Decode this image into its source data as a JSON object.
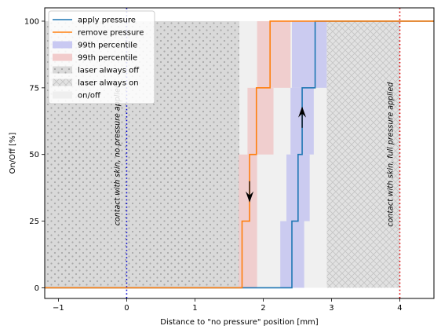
{
  "chart_data": {
    "type": "line",
    "xlabel": "Distance to \"no pressure\" position [mm]",
    "ylabel": "On/Off [%]",
    "xlim": [
      -1.2,
      4.5
    ],
    "ylim": [
      -4,
      105
    ],
    "x_ticks": [
      -1,
      0,
      1,
      2,
      3,
      4
    ],
    "y_ticks": [
      0,
      25,
      50,
      75,
      100
    ],
    "grid": false,
    "legend_position": "top-left",
    "legend": [
      {
        "label": "apply pressure",
        "kind": "line",
        "color": "#1f77b4"
      },
      {
        "label": "remove pressure",
        "kind": "line",
        "color": "#ff7f0e"
      },
      {
        "label": "99th percentile",
        "kind": "patch",
        "color": "#c9c9f2"
      },
      {
        "label": "99th percentile",
        "kind": "patch",
        "color": "#f2cccc"
      },
      {
        "label": "laser always off",
        "kind": "patch-dots",
        "color": "#d9d9d9"
      },
      {
        "label": "laser always on",
        "kind": "patch-cross",
        "color": "#e0e0e0"
      },
      {
        "label": "on/off",
        "kind": "patch",
        "color": "#efefef"
      }
    ],
    "series": [
      {
        "name": "apply pressure",
        "color": "#1f77b4",
        "x": [
          -1.2,
          2.42,
          2.42,
          2.51,
          2.51,
          2.57,
          2.57,
          2.65,
          2.65,
          2.76,
          2.76,
          4.5
        ],
        "y": [
          0,
          0,
          25,
          25,
          50,
          50,
          75,
          75,
          75,
          75,
          100,
          100
        ]
      },
      {
        "name": "remove pressure",
        "color": "#ff7f0e",
        "x": [
          -1.2,
          1.69,
          1.69,
          1.8,
          1.8,
          1.9,
          1.9,
          2.1,
          2.1,
          4.5
        ],
        "y": [
          0,
          0,
          25,
          25,
          50,
          50,
          75,
          75,
          100,
          100
        ]
      }
    ],
    "regions": [
      {
        "kind": "laser_off",
        "x0": -1.2,
        "x1": 1.88,
        "y0": 0,
        "y1": 100
      },
      {
        "kind": "laser_on",
        "x0": 2.93,
        "x1": 4.0,
        "y0": 0,
        "y1": 100
      },
      {
        "kind": "onoff",
        "x0": 1.65,
        "x1": 2.93,
        "y0": 0,
        "y1": 100
      },
      {
        "kind": "apply_pct",
        "x0": 2.25,
        "x1": 2.6,
        "y0": 0,
        "y1": 25
      },
      {
        "kind": "apply_pct",
        "x0": 2.34,
        "x1": 2.68,
        "y0": 25,
        "y1": 50
      },
      {
        "kind": "apply_pct",
        "x0": 2.4,
        "x1": 2.74,
        "y0": 50,
        "y1": 75
      },
      {
        "kind": "apply_pct",
        "x0": 2.42,
        "x1": 2.93,
        "y0": 75,
        "y1": 100
      },
      {
        "kind": "remove_pct",
        "x0": 1.64,
        "x1": 1.91,
        "y0": 0,
        "y1": 25
      },
      {
        "kind": "remove_pct",
        "x0": 1.64,
        "x1": 1.91,
        "y0": 25,
        "y1": 50
      },
      {
        "kind": "remove_pct",
        "x0": 1.77,
        "x1": 2.15,
        "y0": 50,
        "y1": 75
      },
      {
        "kind": "remove_pct",
        "x0": 1.91,
        "x1": 2.4,
        "y0": 75,
        "y1": 100
      }
    ],
    "vlines": [
      {
        "x": 0,
        "color": "#0000cc",
        "label": "contact with skin, no pressure applied",
        "label_y": 50
      },
      {
        "x": 4,
        "color": "#dd0000",
        "label": "contact with skin, full pressure applied",
        "label_y": 50
      }
    ],
    "arrows": [
      {
        "x": 1.8,
        "y_from": 40,
        "y_to": 32,
        "direction": "down"
      },
      {
        "x": 2.57,
        "y_from": 60,
        "y_to": 68,
        "direction": "up"
      }
    ]
  }
}
